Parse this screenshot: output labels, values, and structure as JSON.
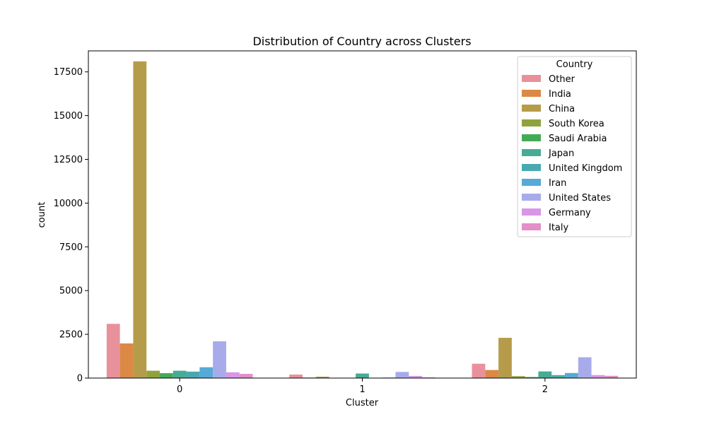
{
  "chart_data": {
    "type": "bar",
    "title": "Distribution of Country across Clusters",
    "xlabel": "Cluster",
    "ylabel": "count",
    "categories": [
      "0",
      "1",
      "2"
    ],
    "ylim": [
      0,
      18700
    ],
    "yticks": [
      0,
      2500,
      5000,
      7500,
      10000,
      12500,
      15000,
      17500
    ],
    "yticks_labels": [
      "0",
      "2500",
      "5000",
      "7500",
      "10000",
      "12500",
      "15000",
      "17500"
    ],
    "legend": {
      "title": "Country",
      "placement": "top-right"
    },
    "series": [
      {
        "name": "Other",
        "color": "#e8919b",
        "values": [
          3100,
          200,
          820
        ]
      },
      {
        "name": "India",
        "color": "#db8945",
        "values": [
          1980,
          30,
          460
        ]
      },
      {
        "name": "China",
        "color": "#b69c4a",
        "values": [
          18100,
          80,
          2300
        ]
      },
      {
        "name": "South Korea",
        "color": "#8fa33d",
        "values": [
          420,
          10,
          110
        ]
      },
      {
        "name": "Saudi Arabia",
        "color": "#43ab56",
        "values": [
          280,
          5,
          60
        ]
      },
      {
        "name": "Japan",
        "color": "#47ab95",
        "values": [
          420,
          260,
          380
        ]
      },
      {
        "name": "United Kingdom",
        "color": "#48aab0",
        "values": [
          370,
          20,
          170
        ]
      },
      {
        "name": "Iran",
        "color": "#56aad7",
        "values": [
          620,
          30,
          290
        ]
      },
      {
        "name": "United States",
        "color": "#a8abea",
        "values": [
          2100,
          350,
          1190
        ]
      },
      {
        "name": "Germany",
        "color": "#d995e7",
        "values": [
          330,
          120,
          170
        ]
      },
      {
        "name": "Italy",
        "color": "#e38fc8",
        "values": [
          240,
          40,
          130
        ]
      }
    ]
  }
}
